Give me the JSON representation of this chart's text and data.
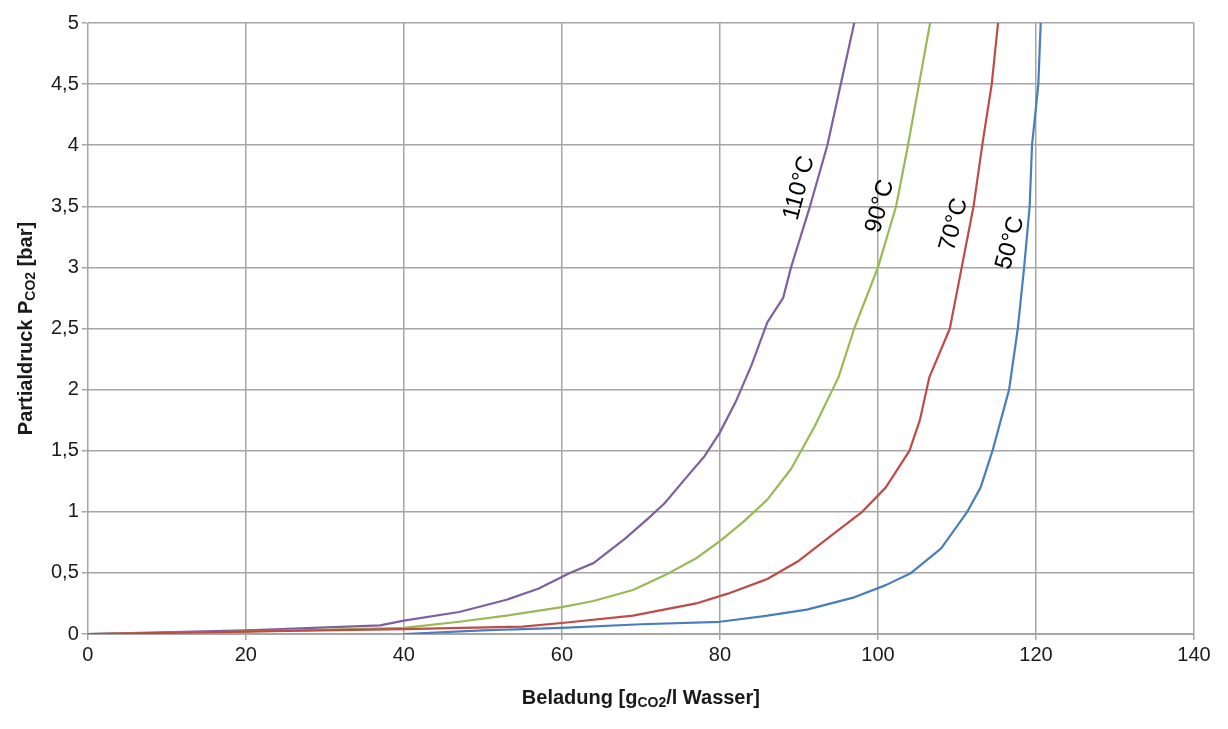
{
  "chart_data": {
    "type": "line",
    "xlabel": "Beladung [g$_{CO2}$/l Wasser]",
    "ylabel": "Partialdruck P$_{CO2}$ [bar]",
    "xlim": [
      0,
      140
    ],
    "xticks": [
      0,
      20,
      40,
      60,
      80,
      100,
      120,
      140
    ],
    "ylim": [
      0,
      5
    ],
    "yticks": [
      0,
      {
        "value": 0.5,
        "label": "0,5"
      },
      1,
      {
        "value": 1.5,
        "label": "1,5"
      },
      2,
      {
        "value": 2.5,
        "label": "2,5"
      },
      3,
      {
        "value": 3.5,
        "label": "3,5"
      },
      4,
      {
        "value": 4.5,
        "label": "4,5"
      },
      5
    ],
    "grid": true,
    "legend": false,
    "marker": "none",
    "line_style": "solid",
    "series": [
      {
        "name": "50°C",
        "color": "#4a7ebb",
        "x": [
          40,
          50,
          60,
          70,
          80,
          86,
          91,
          97,
          101,
          104.2,
          108,
          111.3,
          113,
          114.5,
          116.6,
          117.7,
          118.5,
          119.2,
          119.5,
          120.3,
          120.6
        ],
        "values": [
          0,
          0.03,
          0.05,
          0.08,
          0.1,
          0.15,
          0.2,
          0.3,
          0.4,
          0.5,
          0.7,
          1.0,
          1.2,
          1.5,
          2.0,
          2.5,
          3.0,
          3.5,
          4.0,
          4.5,
          5
        ]
      },
      {
        "name": "70°C",
        "color": "#be4b48",
        "x": [
          0,
          20,
          40,
          55,
          60,
          69,
          77,
          81,
          86,
          90,
          94,
          98,
          101,
          104,
          105.3,
          106.5,
          109.1,
          110.6,
          112.1,
          113.2,
          114.4,
          115.2
        ],
        "values": [
          0,
          0.02,
          0.04,
          0.06,
          0.09,
          0.15,
          0.25,
          0.33,
          0.45,
          0.6,
          0.8,
          1.0,
          1.2,
          1.5,
          1.75,
          2.1,
          2.5,
          3.0,
          3.5,
          4.0,
          4.5,
          5
        ]
      },
      {
        "name": "90°C",
        "color": "#98b954",
        "x": [
          0,
          20,
          40,
          47,
          53,
          60,
          64,
          69,
          73,
          77,
          80,
          83,
          86,
          89,
          92,
          95,
          97,
          100,
          102.3,
          103.8,
          105.2,
          106.6
        ],
        "values": [
          0,
          0.02,
          0.05,
          0.1,
          0.15,
          0.22,
          0.27,
          0.36,
          0.48,
          0.62,
          0.76,
          0.92,
          1.1,
          1.35,
          1.7,
          2.1,
          2.5,
          3.0,
          3.5,
          4.0,
          4.5,
          5
        ]
      },
      {
        "name": "110°C",
        "color": "#7d60a0",
        "x": [
          0,
          20,
          37,
          40,
          47,
          53,
          57,
          61,
          64,
          68,
          71,
          73,
          76,
          78,
          80,
          82,
          84,
          86,
          88,
          89,
          91.4,
          93.6,
          95.3,
          97
        ],
        "values": [
          0,
          0.03,
          0.07,
          0.11,
          0.18,
          0.28,
          0.37,
          0.5,
          0.58,
          0.78,
          0.95,
          1.07,
          1.3,
          1.45,
          1.65,
          1.9,
          2.2,
          2.55,
          2.75,
          3.0,
          3.5,
          4.0,
          4.5,
          5
        ]
      }
    ]
  }
}
